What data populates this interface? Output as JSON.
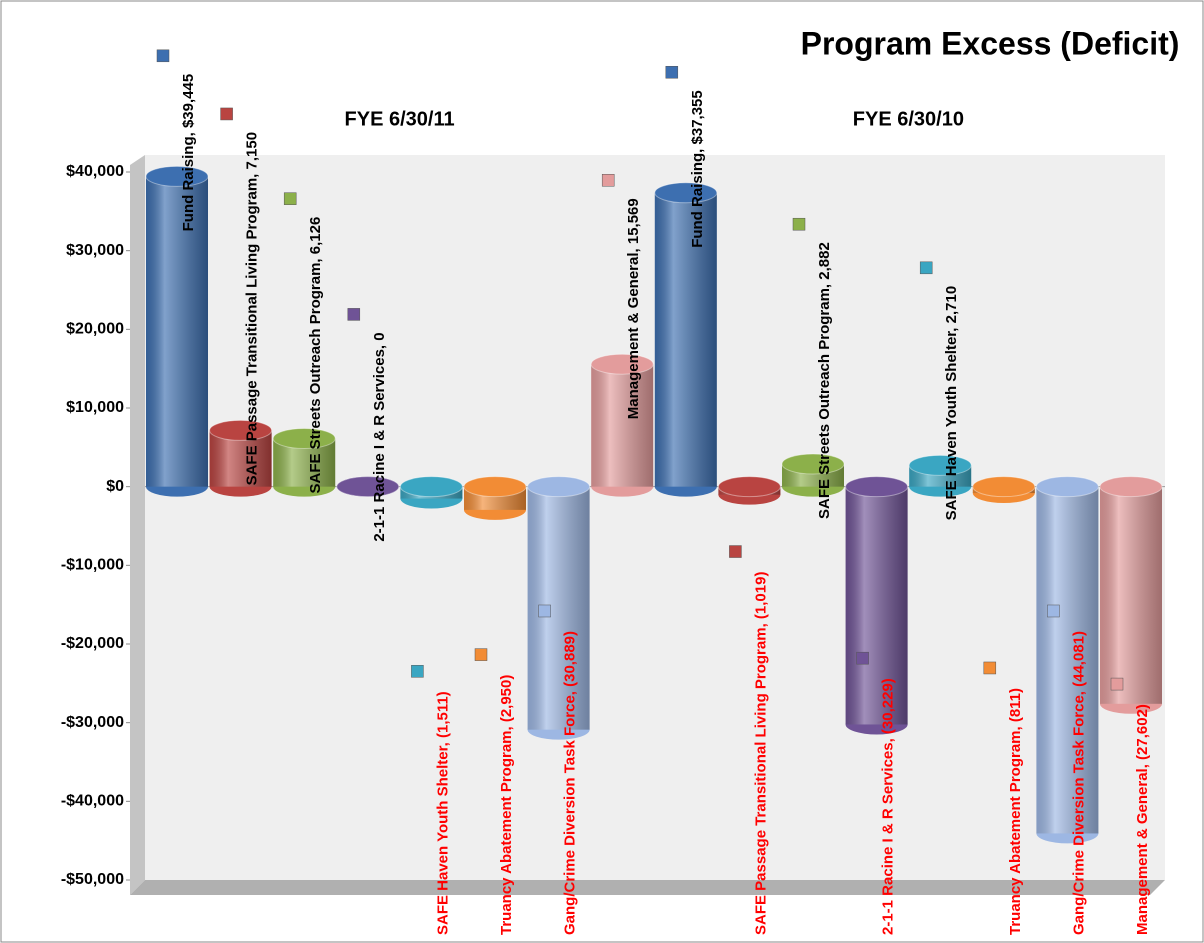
{
  "chart_data": {
    "type": "bar3d",
    "title": "Program Excess (Deficit)",
    "categories": [
      "FYE 6/30/11",
      "FYE 6/30/10"
    ],
    "series": [
      {
        "color": "#3d6fb0",
        "values": [
          39445,
          37355
        ],
        "value_labels": [
          "Fund Raising, $39,445",
          "Fund Raising, $37,355"
        ]
      },
      {
        "color": "#b94441",
        "values": [
          7150,
          -1019
        ],
        "value_labels": [
          "SAFE Passage Transitional Living Program, 7,150",
          "SAFE Passage Transitional Living Program, (1,019)"
        ]
      },
      {
        "color": "#8cb04a",
        "values": [
          6126,
          2882
        ],
        "value_labels": [
          "SAFE Streets Outreach Program, 6,126",
          "SAFE Streets Outreach Program, 2,882"
        ]
      },
      {
        "color": "#6f5396",
        "values": [
          0,
          -30229
        ],
        "value_labels": [
          "2-1-1 Racine I & R Services, 0",
          "2-1-1 Racine I & R Services, (30,229)"
        ]
      },
      {
        "color": "#3aa6c2",
        "values": [
          -1511,
          2710
        ],
        "value_labels": [
          "SAFE Haven Youth Shelter, (1,511)",
          "SAFE Haven Youth Shelter, 2,710"
        ]
      },
      {
        "color": "#f28c35",
        "values": [
          -2950,
          -811
        ],
        "value_labels": [
          "Truancy Abatement Program, (2,950)",
          "Truancy Abatement Program, (811)"
        ]
      },
      {
        "color": "#9db7e3",
        "values": [
          -30889,
          -44081
        ],
        "value_labels": [
          "Gang/Crime Diversion Task Force, (30,889)",
          "Gang/Crime Diversion Task Force, (44,081)"
        ]
      },
      {
        "color": "#e39c9c",
        "values": [
          15569,
          -27602
        ],
        "value_labels": [
          "Management & General, 15,569",
          "Management & General, (27,602)"
        ]
      }
    ],
    "ylim": [
      -50000,
      40000
    ],
    "yticks": [
      {
        "value": -50000,
        "label": "-$50,000"
      },
      {
        "value": -40000,
        "label": "-$40,000"
      },
      {
        "value": -30000,
        "label": "-$30,000"
      },
      {
        "value": -20000,
        "label": "-$20,000"
      },
      {
        "value": -10000,
        "label": "-$10,000"
      },
      {
        "value": 0,
        "label": "$0"
      },
      {
        "value": 10000,
        "label": "$10,000"
      },
      {
        "value": 20000,
        "label": "$20,000"
      },
      {
        "value": 30000,
        "label": "$30,000"
      },
      {
        "value": 40000,
        "label": "$40,000"
      }
    ],
    "positive_label_color": "#000000",
    "negative_label_color": "#ff0000"
  }
}
